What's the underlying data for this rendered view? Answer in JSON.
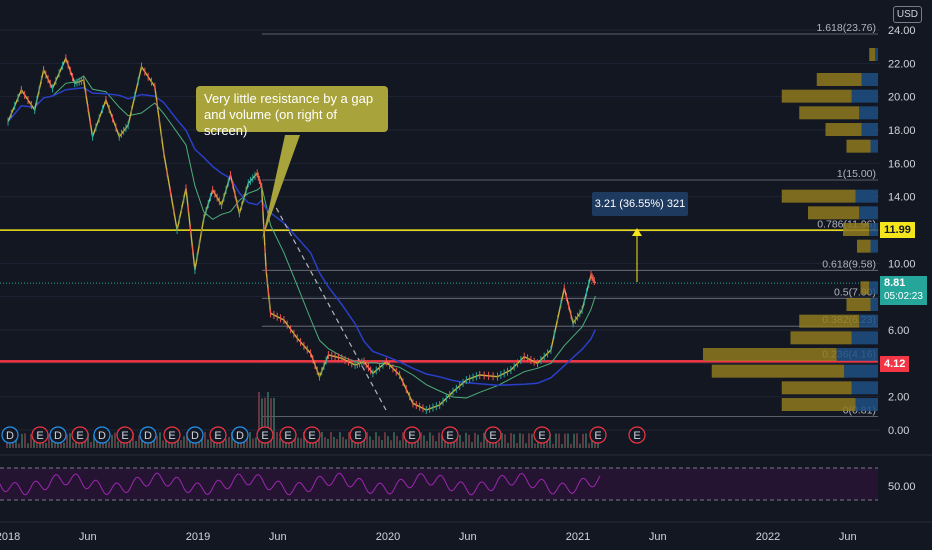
{
  "currency_label": "USD",
  "annotation_text": "Very little resistance by a gap and volume (on right of screen)",
  "measure_text": "3.21 (36.55%) 321",
  "price_tags": {
    "current": "8.81",
    "countdown": "05:02:23",
    "resistance": "11.99",
    "support": "4.12"
  },
  "colors": {
    "background": "#131722",
    "candle_up": "#26a69a",
    "candle_down": "#ef5350",
    "candle_body_up": "#f5e51c",
    "resistance_line": "#f5e51c",
    "support_line": "#f23645",
    "rsi_line": "#9c27b0"
  },
  "chart_data": {
    "type": "line",
    "y_ticks": [
      "24.00",
      "22.00",
      "20.00",
      "18.00",
      "16.00",
      "14.00",
      "12.00",
      "10.00",
      "8.00",
      "6.00",
      "4.00",
      "2.00",
      "0.00"
    ],
    "x_ticks": [
      "2018",
      "Jun",
      "2019",
      "Jun",
      "2020",
      "Jun",
      "2021",
      "Jun",
      "2022",
      "Jun"
    ],
    "ylim": [
      0,
      24
    ],
    "rsi_tick": "50.00",
    "fib_levels": [
      {
        "label": "1.618(23.76)",
        "value": 23.76
      },
      {
        "label": "1(15.00)",
        "value": 15.0
      },
      {
        "label": "0.786(11.96)",
        "value": 11.96
      },
      {
        "label": "0.618(9.58)",
        "value": 9.58
      },
      {
        "label": "0.5(7.90)",
        "value": 7.9
      },
      {
        "label": "0.382(6.23)",
        "value": 6.23
      },
      {
        "label": "0.236(4.16)",
        "value": 4.16
      },
      {
        "label": "0(0.81)",
        "value": 0.81
      }
    ],
    "price_path": [
      [
        0,
        18.5
      ],
      [
        0.03,
        20.4
      ],
      [
        0.06,
        19.2
      ],
      [
        0.08,
        21.6
      ],
      [
        0.1,
        20.5
      ],
      [
        0.13,
        22.3
      ],
      [
        0.15,
        20.8
      ],
      [
        0.17,
        21.0
      ],
      [
        0.19,
        17.6
      ],
      [
        0.22,
        19.8
      ],
      [
        0.25,
        17.6
      ],
      [
        0.27,
        18.3
      ],
      [
        0.3,
        21.8
      ],
      [
        0.33,
        20.6
      ],
      [
        0.35,
        16.6
      ],
      [
        0.38,
        12.0
      ],
      [
        0.4,
        14.5
      ],
      [
        0.42,
        9.6
      ],
      [
        0.44,
        12.7
      ],
      [
        0.46,
        14.4
      ],
      [
        0.48,
        13.5
      ],
      [
        0.5,
        15.3
      ],
      [
        0.52,
        13.0
      ],
      [
        0.54,
        14.8
      ],
      [
        0.56,
        15.4
      ],
      [
        0.57,
        14.6
      ],
      [
        0.58,
        9.6
      ],
      [
        0.59,
        7.0
      ],
      [
        0.62,
        6.6
      ],
      [
        0.65,
        5.5
      ],
      [
        0.68,
        4.6
      ],
      [
        0.7,
        3.2
      ],
      [
        0.72,
        4.5
      ],
      [
        0.75,
        4.3
      ],
      [
        0.78,
        3.9
      ],
      [
        0.8,
        4.1
      ],
      [
        0.82,
        3.4
      ],
      [
        0.85,
        4.1
      ],
      [
        0.88,
        3.3
      ],
      [
        0.91,
        1.6
      ],
      [
        0.94,
        1.2
      ],
      [
        0.97,
        1.5
      ],
      [
        1.0,
        2.3
      ],
      [
        1.03,
        3.0
      ],
      [
        1.06,
        3.3
      ],
      [
        1.1,
        3.2
      ],
      [
        1.13,
        3.6
      ],
      [
        1.16,
        4.4
      ],
      [
        1.19,
        4.0
      ],
      [
        1.22,
        4.8
      ],
      [
        1.25,
        8.5
      ],
      [
        1.27,
        6.4
      ],
      [
        1.29,
        7.2
      ],
      [
        1.31,
        9.3
      ],
      [
        1.32,
        8.81
      ]
    ],
    "volume_profile": [
      {
        "price": 22.5,
        "up": 0.05,
        "down": 0.04
      },
      {
        "price": 21.0,
        "up": 0.35,
        "down": 0.22
      },
      {
        "price": 20.0,
        "up": 0.55,
        "down": 0.35
      },
      {
        "price": 19.0,
        "up": 0.45,
        "down": 0.25
      },
      {
        "price": 18.0,
        "up": 0.3,
        "down": 0.22
      },
      {
        "price": 17.0,
        "up": 0.18,
        "down": 0.1
      },
      {
        "price": 14.0,
        "up": 0.55,
        "down": 0.3
      },
      {
        "price": 13.0,
        "up": 0.4,
        "down": 0.25
      },
      {
        "price": 12.0,
        "up": 0.2,
        "down": 0.12
      },
      {
        "price": 11.0,
        "up": 0.12,
        "down": 0.1
      },
      {
        "price": 8.5,
        "up": 0.1,
        "down": 0.12
      },
      {
        "price": 7.5,
        "up": 0.18,
        "down": 0.1
      },
      {
        "price": 6.5,
        "up": 0.45,
        "down": 0.25
      },
      {
        "price": 5.5,
        "up": 0.5,
        "down": 0.35
      },
      {
        "price": 4.5,
        "up": 1.0,
        "down": 0.55
      },
      {
        "price": 3.5,
        "up": 0.95,
        "down": 0.45
      },
      {
        "price": 2.5,
        "up": 0.55,
        "down": 0.35
      },
      {
        "price": 1.5,
        "up": 0.55,
        "down": 0.3
      }
    ]
  }
}
